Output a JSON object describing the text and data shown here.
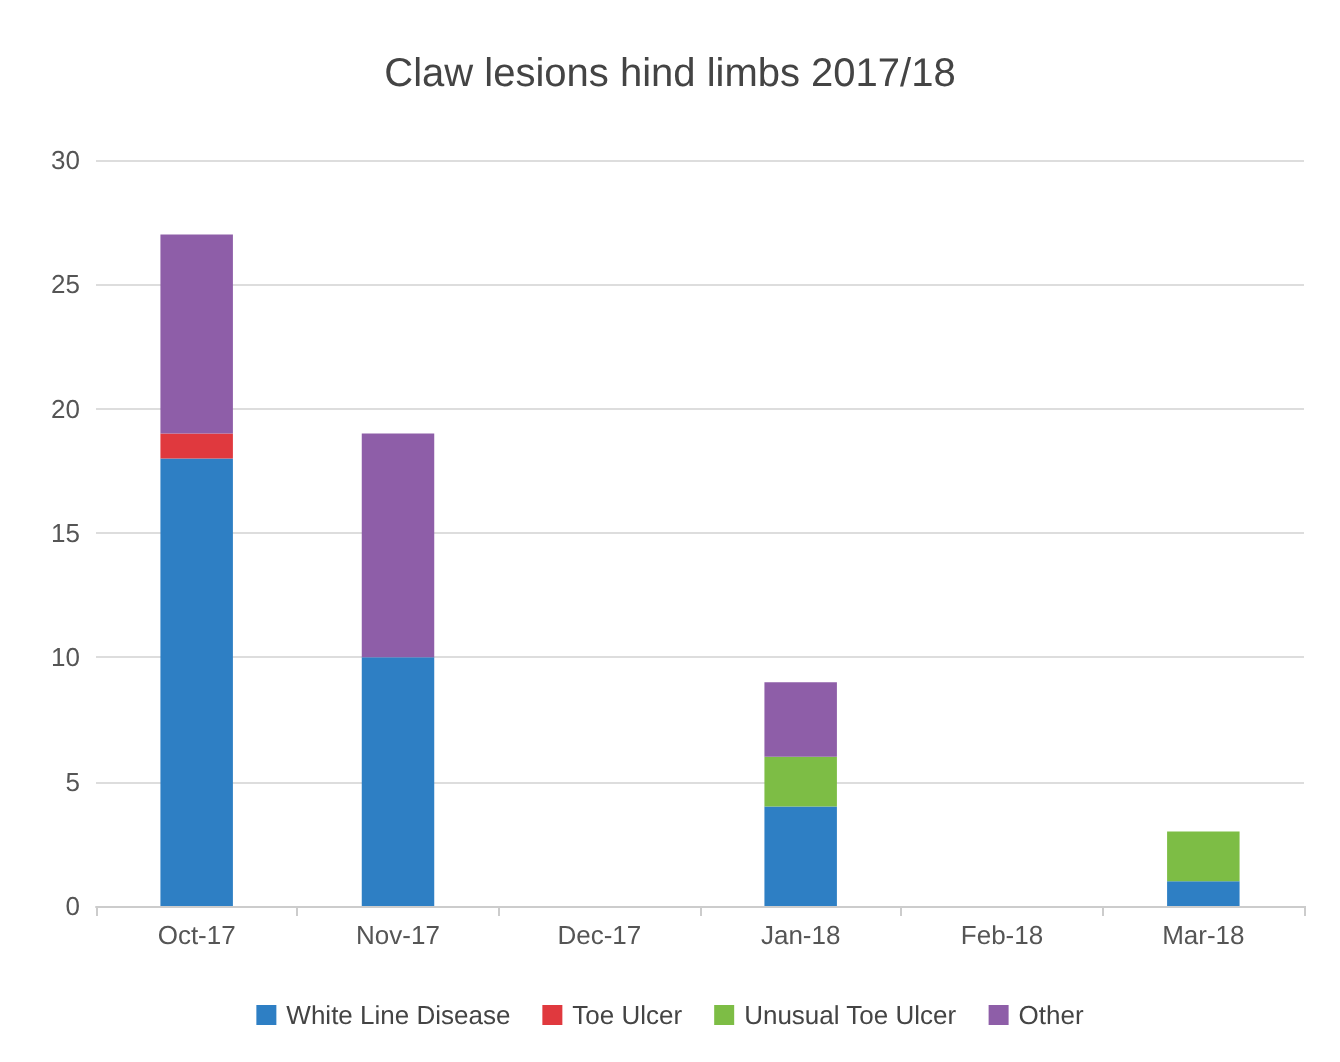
{
  "chart_data": {
    "type": "bar",
    "title": "Claw lesions hind limbs 2017/18",
    "categories": [
      "Oct-17",
      "Nov-17",
      "Dec-17",
      "Jan-18",
      "Feb-18",
      "Mar-18"
    ],
    "stacked": true,
    "series": [
      {
        "name": "White Line Disease",
        "color": "#2e7fc4",
        "values": [
          18,
          10,
          0,
          4,
          0,
          1
        ]
      },
      {
        "name": "Toe Ulcer",
        "color": "#e0393e",
        "values": [
          1,
          0,
          0,
          0,
          0,
          0
        ]
      },
      {
        "name": "Unusual Toe Ulcer",
        "color": "#7dbd45",
        "values": [
          0,
          0,
          0,
          2,
          0,
          2
        ]
      },
      {
        "name": "Other",
        "color": "#8e5ea8",
        "values": [
          8,
          9,
          0,
          3,
          0,
          0
        ]
      }
    ],
    "ylim": [
      0,
      30
    ],
    "yticks": [
      0,
      5,
      10,
      15,
      20,
      25,
      30
    ],
    "grid": "y",
    "legend": "bottom"
  }
}
